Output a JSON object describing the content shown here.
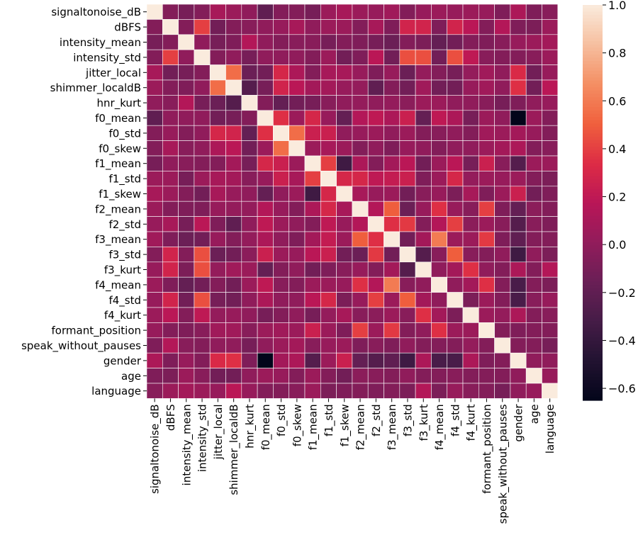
{
  "chart_data": {
    "type": "heatmap",
    "title": "",
    "xlabel": "",
    "ylabel": "",
    "labels": [
      "signaltonoise_dB",
      "dBFS",
      "intensity_mean",
      "intensity_std",
      "jitter_local",
      "shimmer_localdB",
      "hnr_kurt",
      "f0_mean",
      "f0_std",
      "f0_skew",
      "f1_mean",
      "f1_std",
      "f1_skew",
      "f2_mean",
      "f2_std",
      "f3_mean",
      "f3_std",
      "f3_kurt",
      "f4_mean",
      "f4_std",
      "f4_kurt",
      "formant_position",
      "speak_without_pauses",
      "gender",
      "age",
      "language"
    ],
    "matrix": [
      [
        1,
        -0.05,
        -0.1,
        -0.05,
        0.1,
        0.05,
        0,
        -0.2,
        -0.05,
        -0.05,
        -0.1,
        0.05,
        0.1,
        0.05,
        0.03,
        0.07,
        -0.05,
        0.03,
        0.05,
        0.03,
        0.05,
        0.03,
        -0.07,
        0.12,
        -0.07,
        -0.03
      ],
      [
        -0.05,
        1,
        -0.05,
        0.4,
        -0.12,
        -0.05,
        -0.03,
        0,
        0.03,
        0.1,
        0,
        0.05,
        0.05,
        -0.05,
        0.1,
        -0.07,
        0.28,
        0.28,
        -0.07,
        0.28,
        0.18,
        -0.05,
        0.15,
        -0.07,
        -0.08,
        0.05
      ],
      [
        -0.1,
        -0.05,
        1,
        0,
        -0.1,
        -0.07,
        0.15,
        0,
        -0.05,
        -0.03,
        -0.03,
        -0.1,
        -0.05,
        -0.07,
        -0.1,
        -0.15,
        -0.05,
        -0.08,
        -0.18,
        -0.12,
        -0.05,
        -0.07,
        -0.03,
        0.03,
        0.05,
        0.08
      ],
      [
        -0.05,
        0.4,
        0,
        1,
        -0.05,
        0,
        -0.1,
        0,
        0,
        0,
        -0.05,
        0.05,
        -0.12,
        -0.07,
        0.18,
        -0.12,
        0.45,
        0.45,
        -0.12,
        0.45,
        0.2,
        -0.03,
        -0.05,
        -0.05,
        -0.03,
        0.05
      ],
      [
        0.1,
        -0.12,
        -0.1,
        -0.05,
        1,
        0.55,
        -0.15,
        -0.12,
        0.3,
        0.12,
        -0.05,
        0.1,
        0.1,
        0.03,
        -0.07,
        0.03,
        -0.15,
        0.02,
        -0.05,
        -0.1,
        0.02,
        0.07,
        0,
        0.32,
        -0.12,
        0.03
      ],
      [
        0.05,
        -0.05,
        -0.07,
        0,
        0.55,
        1,
        -0.25,
        -0.1,
        0.28,
        0.18,
        0.08,
        0.08,
        0.03,
        0.02,
        -0.2,
        -0.05,
        -0.12,
        0.07,
        -0.12,
        -0.12,
        0.03,
        0.07,
        0,
        0.35,
        -0.12,
        0.18
      ],
      [
        0,
        -0.03,
        0.15,
        -0.1,
        -0.15,
        -0.25,
        1,
        -0.05,
        -0.18,
        -0.12,
        -0.1,
        -0.03,
        0,
        0.02,
        0,
        0.02,
        -0.02,
        0.05,
        0.05,
        0,
        0,
        -0.03,
        -0.1,
        -0.07,
        0,
        0.03
      ],
      [
        -0.2,
        0,
        0,
        0,
        -0.12,
        -0.1,
        -0.05,
        1,
        0.35,
        0.05,
        0.3,
        0.03,
        -0.18,
        0.15,
        0.2,
        0.12,
        0.25,
        -0.18,
        0.2,
        0.12,
        -0.1,
        0.05,
        0,
        -0.65,
        0.05,
        -0.05
      ],
      [
        -0.05,
        0.03,
        -0.05,
        0,
        0.3,
        0.28,
        -0.18,
        0.35,
        1,
        0.55,
        0.25,
        0.25,
        0,
        0.03,
        0.05,
        0,
        0.05,
        -0.05,
        -0.03,
        0,
        -0.05,
        0.07,
        0.05,
        0.08,
        0.03,
        -0.05
      ],
      [
        -0.05,
        0.1,
        -0.03,
        0,
        0.12,
        0.18,
        -0.12,
        0.05,
        0.55,
        1,
        0.05,
        0.1,
        0.05,
        -0.05,
        0,
        -0.07,
        0.03,
        0,
        -0.05,
        0,
        0,
        0.05,
        0.08,
        0.12,
        -0.05,
        -0.03
      ],
      [
        -0.1,
        0,
        -0.03,
        -0.05,
        -0.05,
        0.08,
        -0.1,
        0.3,
        0.25,
        0.05,
        1,
        0.4,
        -0.35,
        0.12,
        -0.05,
        0.08,
        0.18,
        -0.12,
        0.05,
        0.18,
        -0.1,
        0.25,
        -0.03,
        -0.25,
        0.05,
        0.05
      ],
      [
        0.05,
        0.05,
        -0.1,
        0.05,
        0.1,
        0.08,
        -0.03,
        0.03,
        0.25,
        0.1,
        0.4,
        1,
        0.3,
        0.3,
        0.2,
        0.22,
        0.25,
        -0.07,
        0.05,
        0.3,
        0.02,
        0.05,
        0.03,
        0.05,
        -0.05,
        -0.08
      ],
      [
        0.1,
        0.05,
        -0.05,
        -0.12,
        0.1,
        0.03,
        0,
        -0.18,
        0,
        0.05,
        -0.35,
        0.3,
        1,
        0.1,
        0.03,
        0.05,
        -0.12,
        -0.03,
        0.03,
        -0.08,
        0.1,
        -0.07,
        0.05,
        0.25,
        -0.12,
        -0.07
      ],
      [
        0.05,
        -0.05,
        -0.07,
        -0.07,
        0.03,
        0.02,
        0.02,
        0.15,
        0.03,
        -0.05,
        0.12,
        0.3,
        0.1,
        1,
        0.15,
        0.5,
        -0.15,
        0.03,
        0.35,
        0.03,
        -0.03,
        0.4,
        -0.07,
        -0.18,
        -0.02,
        -0.05
      ],
      [
        0.03,
        0.1,
        -0.1,
        0.18,
        -0.07,
        -0.2,
        0,
        0.2,
        0.05,
        0,
        -0.05,
        0.2,
        0.03,
        0.15,
        1,
        0.35,
        0.38,
        -0.05,
        0.15,
        0.4,
        -0.02,
        0.05,
        -0.03,
        -0.25,
        -0.03,
        -0.07
      ],
      [
        0.07,
        -0.07,
        -0.15,
        -0.12,
        0.03,
        -0.05,
        0.02,
        0.12,
        0,
        -0.07,
        0.08,
        0.22,
        0.05,
        0.5,
        0.35,
        1,
        -0.12,
        0.08,
        0.6,
        0.05,
        0.05,
        0.38,
        -0.07,
        -0.2,
        -0.05,
        -0.05
      ],
      [
        -0.05,
        0.28,
        -0.05,
        0.45,
        -0.15,
        -0.12,
        -0.02,
        0.25,
        0.05,
        0.03,
        0.18,
        0.25,
        -0.12,
        -0.15,
        0.38,
        -0.12,
        1,
        -0.25,
        -0.03,
        0.5,
        -0.03,
        -0.05,
        0,
        -0.35,
        0,
        -0.08
      ],
      [
        0.03,
        0.28,
        -0.08,
        0.45,
        0.02,
        0.07,
        0.05,
        -0.18,
        -0.05,
        0,
        -0.12,
        -0.07,
        -0.03,
        0.03,
        -0.05,
        0.08,
        -0.25,
        1,
        0,
        0.08,
        0.35,
        0,
        -0.05,
        0.12,
        -0.05,
        0.15
      ],
      [
        0.05,
        -0.07,
        -0.18,
        -0.12,
        -0.05,
        -0.12,
        0.05,
        0.2,
        -0.03,
        -0.05,
        0.05,
        0.05,
        0.03,
        0.35,
        0.15,
        0.6,
        -0.03,
        0,
        1,
        0,
        0.08,
        0.35,
        -0.05,
        -0.3,
        -0.05,
        -0.08
      ],
      [
        0.03,
        0.28,
        -0.12,
        0.45,
        -0.1,
        -0.12,
        0,
        0.12,
        0,
        0,
        0.18,
        0.3,
        -0.08,
        0.03,
        0.4,
        0.05,
        0.5,
        0.08,
        0,
        1,
        -0.08,
        0.05,
        -0.05,
        -0.3,
        -0.03,
        0.03
      ],
      [
        0.05,
        0.18,
        -0.05,
        0.2,
        0.02,
        0.03,
        0,
        -0.1,
        -0.05,
        0,
        -0.1,
        0.02,
        0.1,
        -0.03,
        -0.02,
        0.05,
        -0.03,
        0.35,
        0.08,
        -0.08,
        1,
        0.05,
        0.02,
        0.12,
        -0.05,
        -0.03
      ],
      [
        0.03,
        -0.05,
        -0.07,
        -0.03,
        0.07,
        0.07,
        -0.03,
        0.05,
        0.07,
        0.05,
        0.25,
        0.05,
        -0.07,
        0.4,
        0.05,
        0.38,
        -0.05,
        0,
        0.35,
        0.05,
        0.05,
        1,
        -0.05,
        -0.07,
        -0.05,
        -0.05
      ],
      [
        -0.07,
        0.15,
        -0.03,
        -0.05,
        0,
        0,
        -0.1,
        0,
        0.05,
        0.08,
        -0.03,
        0.03,
        0.05,
        -0.07,
        -0.03,
        -0.07,
        0,
        -0.05,
        -0.05,
        -0.05,
        0.02,
        -0.05,
        1,
        -0.05,
        -0.05,
        -0.1
      ],
      [
        0.12,
        -0.07,
        0.03,
        -0.05,
        0.32,
        0.35,
        -0.07,
        -0.65,
        0.08,
        0.12,
        -0.25,
        0.05,
        0.25,
        -0.18,
        -0.25,
        -0.2,
        -0.35,
        0.12,
        -0.3,
        -0.3,
        0.12,
        -0.07,
        -0.05,
        1,
        0,
        0
      ],
      [
        -0.07,
        -0.08,
        0.05,
        -0.03,
        -0.12,
        -0.12,
        0,
        0.05,
        0.03,
        -0.05,
        0.05,
        -0.05,
        -0.12,
        -0.02,
        -0.03,
        -0.05,
        0,
        -0.05,
        -0.05,
        -0.03,
        -0.05,
        -0.05,
        -0.05,
        0,
        1,
        0.03
      ],
      [
        -0.03,
        0.05,
        0.08,
        0.05,
        0.03,
        0.18,
        0.03,
        -0.05,
        -0.05,
        -0.03,
        0.05,
        -0.08,
        -0.07,
        -0.05,
        -0.07,
        -0.05,
        -0.08,
        0.15,
        -0.08,
        0.03,
        -0.03,
        -0.05,
        -0.1,
        0,
        0.03,
        1
      ]
    ],
    "colormap": "rocket",
    "colormap_stops": [
      "#03051a",
      "#221331",
      "#451c47",
      "#6a1f56",
      "#921c5b",
      "#b91657",
      "#dd2c45",
      "#f0603d",
      "#f48f64",
      "#f6bf9f",
      "#faebdd"
    ],
    "vmin": -0.65,
    "vmax": 1.0,
    "grid_color": "#ffffff",
    "colorbar": {
      "position": "right",
      "ticks": [
        1.0,
        0.8,
        0.6,
        0.4,
        0.2,
        0.0,
        -0.2,
        -0.4,
        -0.6
      ],
      "tick_labels": [
        "1.0",
        "0.8",
        "0.6",
        "0.4",
        "0.2",
        "0.0",
        "−0.2",
        "−0.4",
        "−0.6"
      ]
    }
  }
}
